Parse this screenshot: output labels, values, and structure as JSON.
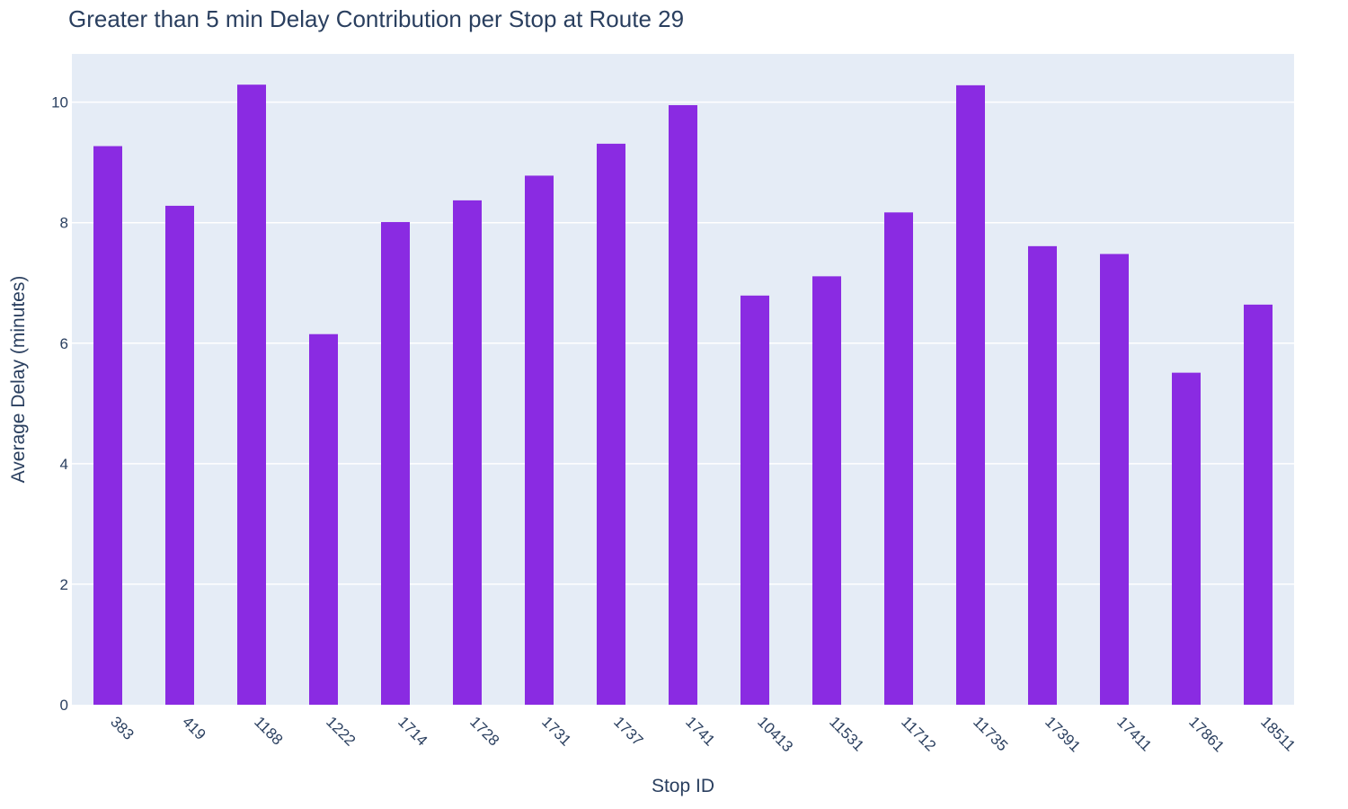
{
  "colors": {
    "bar": "#8a2be2",
    "plot_background": "#e5ecf6",
    "paper_background": "#ffffff",
    "text": "#2a3f5f",
    "grid": "#ffffff"
  },
  "chart_data": {
    "type": "bar",
    "title": "Greater than 5 min Delay Contribution per Stop at Route 29",
    "xlabel": "Stop ID",
    "ylabel": "Average Delay (minutes)",
    "categories": [
      "383",
      "419",
      "1188",
      "1222",
      "1714",
      "1728",
      "1731",
      "1737",
      "1741",
      "10413",
      "11531",
      "11712",
      "11735",
      "17391",
      "17411",
      "17861",
      "18511"
    ],
    "values": [
      9.27,
      8.28,
      10.29,
      6.15,
      8.01,
      8.37,
      8.78,
      9.31,
      9.95,
      6.79,
      7.11,
      8.17,
      10.28,
      7.61,
      7.48,
      5.51,
      6.64
    ],
    "yticks": [
      "0",
      "2",
      "4",
      "6",
      "8",
      "10"
    ],
    "ylim": [
      0,
      10.8
    ],
    "grid": true,
    "legend": "none"
  }
}
